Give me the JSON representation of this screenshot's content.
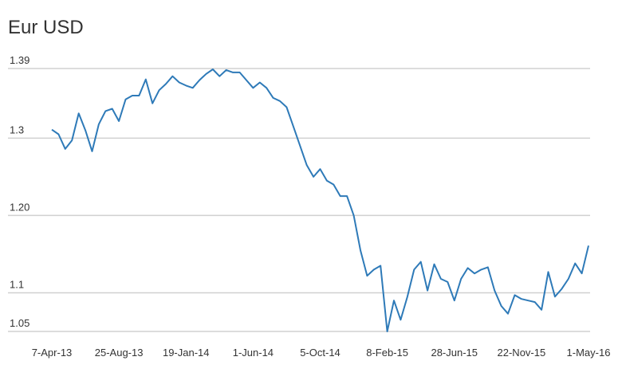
{
  "chart_data": {
    "type": "line",
    "title": "Eur USD",
    "categories": [
      "7-Apr-13",
      null,
      null,
      null,
      null,
      null,
      null,
      null,
      null,
      null,
      "25-Aug-13",
      null,
      null,
      null,
      null,
      null,
      null,
      null,
      null,
      null,
      "19-Jan-14",
      null,
      null,
      null,
      null,
      null,
      null,
      null,
      null,
      null,
      "1-Jun-14",
      null,
      null,
      null,
      null,
      null,
      null,
      null,
      null,
      null,
      "5-Oct-14",
      null,
      null,
      null,
      null,
      null,
      null,
      null,
      null,
      null,
      "8-Feb-15",
      null,
      null,
      null,
      null,
      null,
      null,
      null,
      null,
      null,
      "28-Jun-15",
      null,
      null,
      null,
      null,
      null,
      null,
      null,
      null,
      null,
      "22-Nov-15",
      null,
      null,
      null,
      null,
      null,
      null,
      null,
      null,
      null,
      "1-May-16"
    ],
    "series": [
      {
        "color": "#2e7ab8",
        "values": [
          1.311,
          1.305,
          1.286,
          1.297,
          1.332,
          1.31,
          1.283,
          1.318,
          1.335,
          1.338,
          1.322,
          1.35,
          1.355,
          1.355,
          1.376,
          1.345,
          1.362,
          1.37,
          1.38,
          1.372,
          1.368,
          1.365,
          1.375,
          1.383,
          1.389,
          1.38,
          1.388,
          1.385,
          1.385,
          1.375,
          1.365,
          1.372,
          1.365,
          1.352,
          1.348,
          1.34,
          1.315,
          1.29,
          1.265,
          1.25,
          1.26,
          1.245,
          1.24,
          1.225,
          1.225,
          1.2,
          1.155,
          1.122,
          1.13,
          1.135,
          1.05,
          1.09,
          1.065,
          1.095,
          1.13,
          1.14,
          1.103,
          1.137,
          1.118,
          1.114,
          1.09,
          1.118,
          1.132,
          1.125,
          1.13,
          1.133,
          1.103,
          1.083,
          1.073,
          1.097,
          1.092,
          1.09,
          1.088,
          1.078,
          1.127,
          1.095,
          1.105,
          1.118,
          1.138,
          1.125,
          1.161
        ]
      }
    ],
    "ylim": [
      1.05,
      1.39
    ],
    "yticks": [
      1.39,
      1.3,
      {
        "value": 1.2,
        "label": "1.20"
      },
      1.1,
      1.05
    ],
    "grid": true
  }
}
